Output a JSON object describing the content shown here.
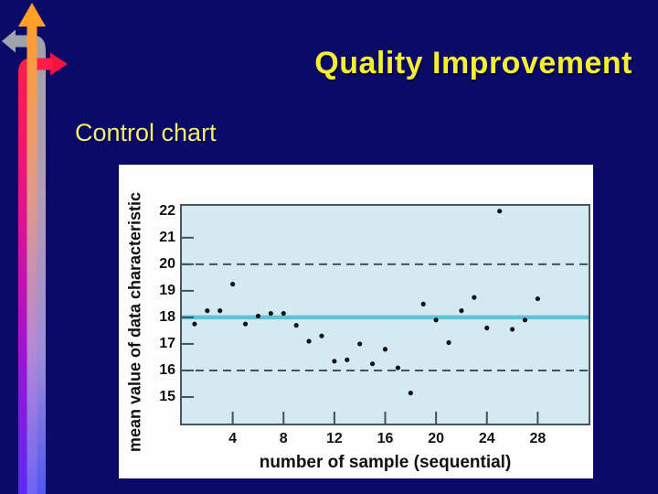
{
  "slide": {
    "title": "Quality Improvement",
    "subtitle": "Control chart",
    "colors": {
      "background": "#0a0a69",
      "title": "#f6ee33",
      "subtitle": "#f3ec70"
    }
  },
  "decoration": {
    "up_arrow_color": "#ffa028",
    "left_arrow_color": "#9fa3ab",
    "right_arrow_color": "#f81240"
  },
  "chart_data": {
    "type": "scatter",
    "title": "",
    "xlabel": "number of sample (sequential)",
    "ylabel": "mean value of data characteristic",
    "x": [
      1,
      2,
      3,
      4,
      5,
      6,
      7,
      8,
      9,
      10,
      11,
      12,
      13,
      14,
      15,
      16,
      17,
      18,
      19,
      20,
      21,
      22,
      23,
      24,
      25,
      26,
      27,
      28
    ],
    "y": [
      17.75,
      18.25,
      18.25,
      19.25,
      17.75,
      18.05,
      18.15,
      18.15,
      17.7,
      17.1,
      17.3,
      16.35,
      16.4,
      17.0,
      16.25,
      16.8,
      16.1,
      15.15,
      18.5,
      17.9,
      17.05,
      18.25,
      18.75,
      17.6,
      22.0,
      17.55,
      17.9,
      18.7
    ],
    "center_line": 18,
    "upper_control_limit": 20,
    "lower_control_limit": 16,
    "xticks": [
      4,
      8,
      12,
      16,
      20,
      24,
      28
    ],
    "yticks": [
      15,
      16,
      17,
      18,
      19,
      20,
      21,
      22
    ],
    "xlim": [
      0,
      32
    ],
    "ylim": [
      14,
      22.2
    ],
    "grid": false,
    "legend": false,
    "colors": {
      "panel_bg": "#fdfdfd",
      "plot_bg": "#d3eaf2",
      "center_line": "#5cc3d8",
      "limit_line": "#41525c",
      "point": "#141414",
      "border": "#46565e",
      "text": "#111111"
    }
  }
}
